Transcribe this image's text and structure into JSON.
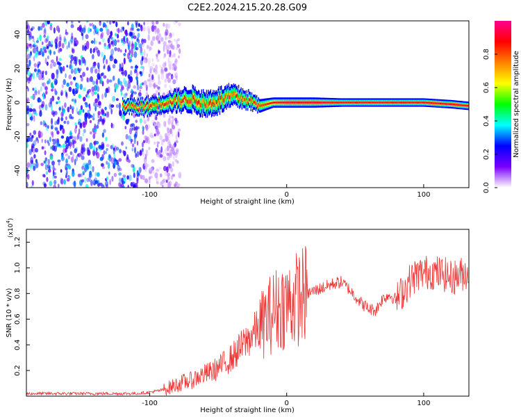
{
  "title": "C2E2.2024.215.20.28.G09",
  "chart_data": [
    {
      "type": "heatmap",
      "xlabel": "Height of straight line (km)",
      "ylabel": "Frequency (Hz)",
      "xlim": [
        -190,
        133
      ],
      "ylim": [
        -50,
        48
      ],
      "xticks": [
        -100,
        0,
        100
      ],
      "yticks": [
        -40,
        -20,
        0,
        20,
        40
      ],
      "colorbar": {
        "label": "Normalized spectral amplitude",
        "range": [
          0.0,
          1.0
        ],
        "ticks": [
          "0.0",
          "0.2",
          "0.4",
          "0.6",
          "0.8"
        ],
        "colors": [
          "#ffffff",
          "#7a00ff",
          "#0000ff",
          "#00ffff",
          "#00ff00",
          "#ffff00",
          "#ff8000",
          "#ff0000",
          "#ff0090"
        ]
      },
      "signal_band": {
        "x": [
          -120,
          -110,
          -100,
          -90,
          -80,
          -70,
          -60,
          -50,
          -40,
          -30,
          -20,
          -10,
          0,
          20,
          40,
          60,
          80,
          100,
          120,
          133
        ],
        "center_hz": [
          -2,
          -3,
          -2,
          0,
          1,
          2,
          -1,
          1,
          4,
          2,
          -2,
          0,
          0,
          0,
          0,
          0,
          0,
          0,
          -1,
          -2
        ],
        "halfwidth_hz": [
          4,
          4,
          5,
          5,
          6,
          7,
          7,
          7,
          6,
          5,
          4,
          3,
          3,
          3,
          2.5,
          2.5,
          2.5,
          2.5,
          2.5,
          2.5
        ]
      },
      "noise_region": {
        "x_from": -190,
        "x_to": -90,
        "level": "low"
      }
    },
    {
      "type": "line",
      "xlabel": "Height of straight line (km)",
      "ylabel": "SNR (10 * v/v)",
      "y_multiplier": "(x10",
      "y_multiplier_exp": "4",
      "y_multiplier_close": ")",
      "xlim": [
        -190,
        133
      ],
      "ylim": [
        0,
        1.3
      ],
      "xticks": [
        -100,
        0,
        100
      ],
      "yticks": [
        "0.2",
        "0.4",
        "0.6",
        "0.8",
        "1.0",
        "1.2"
      ],
      "color": "#ee3333",
      "series": [
        {
          "x": [
            -190,
            -170,
            -150,
            -130,
            -110,
            -100,
            -90,
            -80,
            -75,
            -70,
            -65,
            -60,
            -55,
            -50,
            -45,
            -40,
            -35,
            -30,
            -25,
            -20,
            -15,
            -10,
            -5,
            0,
            5,
            10,
            15,
            20,
            25,
            30,
            35,
            40,
            45,
            50,
            55,
            60,
            65,
            70,
            75,
            80,
            85,
            90,
            95,
            100,
            105,
            110,
            115,
            120,
            125,
            130,
            133
          ],
          "values": [
            0.02,
            0.02,
            0.02,
            0.02,
            0.02,
            0.03,
            0.05,
            0.09,
            0.11,
            0.12,
            0.15,
            0.17,
            0.19,
            0.22,
            0.26,
            0.3,
            0.36,
            0.42,
            0.48,
            0.53,
            0.6,
            0.66,
            0.7,
            0.72,
            0.74,
            0.78,
            0.8,
            0.82,
            0.84,
            0.86,
            0.88,
            0.89,
            0.84,
            0.78,
            0.72,
            0.68,
            0.67,
            0.76,
            0.79,
            0.75,
            0.82,
            0.9,
            0.95,
            0.96,
            0.97,
            0.96,
            0.95,
            0.92,
            0.94,
            0.96,
            0.98
          ]
        }
      ]
    }
  ]
}
